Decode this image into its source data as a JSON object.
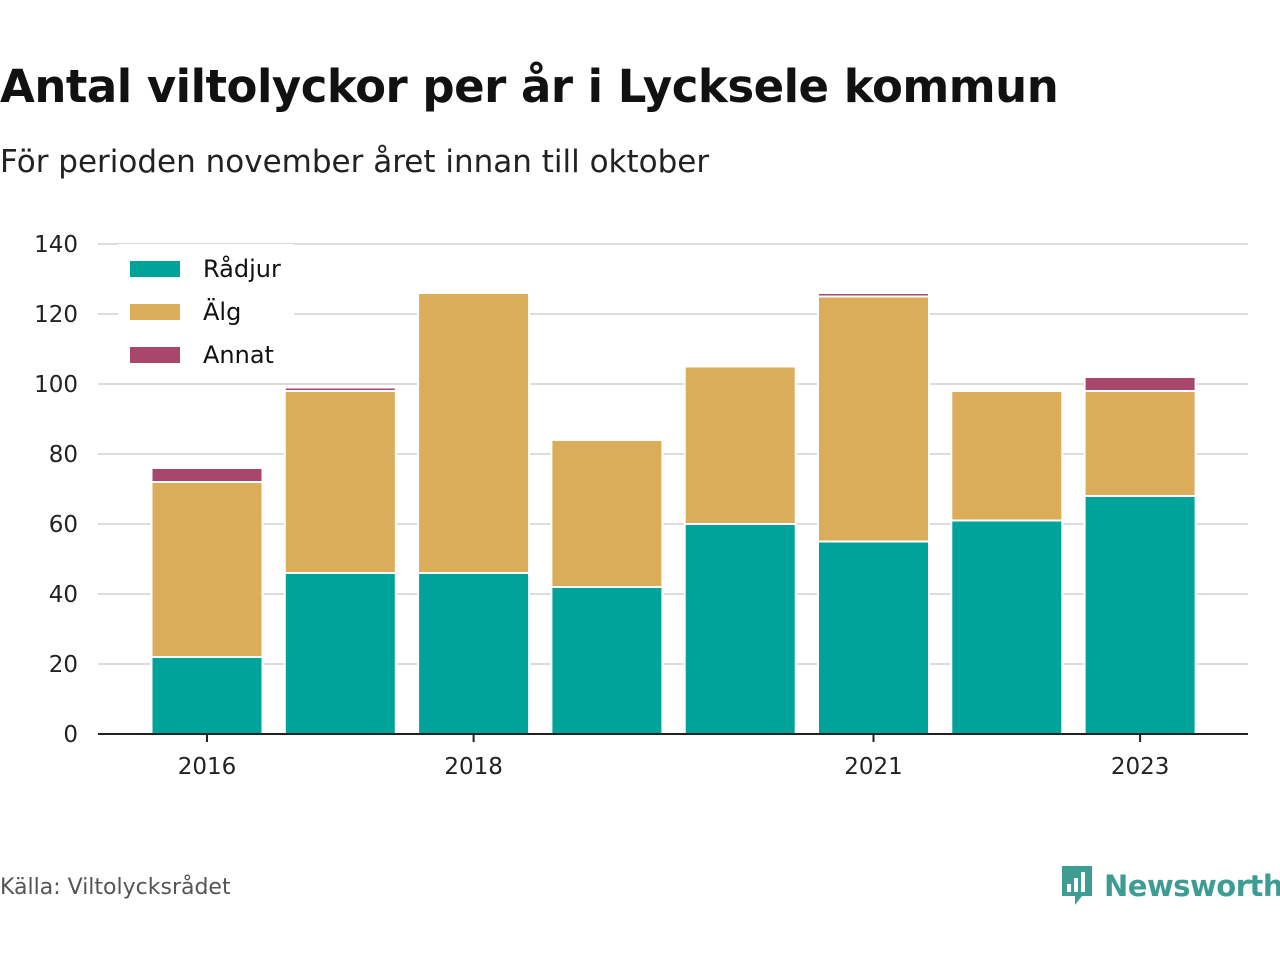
{
  "title": "Antal viltolyckor per år i Lycksele kommun",
  "subtitle": "För perioden november året innan till oktober",
  "source": "Källa: Viltolycksrådet",
  "brand": {
    "name": "Newsworthy",
    "icon": "newsworthy-logo-icon",
    "color": "#3e9d93"
  },
  "chart_data": {
    "type": "bar",
    "stacked": true,
    "categories": [
      "2016",
      "2017",
      "2018",
      "2019",
      "2020",
      "2021",
      "2022",
      "2023"
    ],
    "tick_labels": [
      "2016",
      "",
      "2018",
      "",
      "",
      "2021",
      "",
      "2023"
    ],
    "ylim": [
      0,
      140
    ],
    "yticks": [
      0,
      20,
      40,
      60,
      80,
      100,
      120,
      140
    ],
    "grid": true,
    "legend_position": "top-left",
    "series": [
      {
        "name": "Rådjur",
        "color": "#00a39a",
        "values": [
          22,
          46,
          46,
          42,
          60,
          55,
          61,
          68
        ]
      },
      {
        "name": "Älg",
        "color": "#dbac5a",
        "values": [
          50,
          52,
          80,
          42,
          45,
          70,
          37,
          30
        ]
      },
      {
        "name": "Annat",
        "color": "#a8476b",
        "values": [
          4,
          1,
          0,
          0,
          0,
          1,
          0,
          4
        ]
      }
    ]
  }
}
